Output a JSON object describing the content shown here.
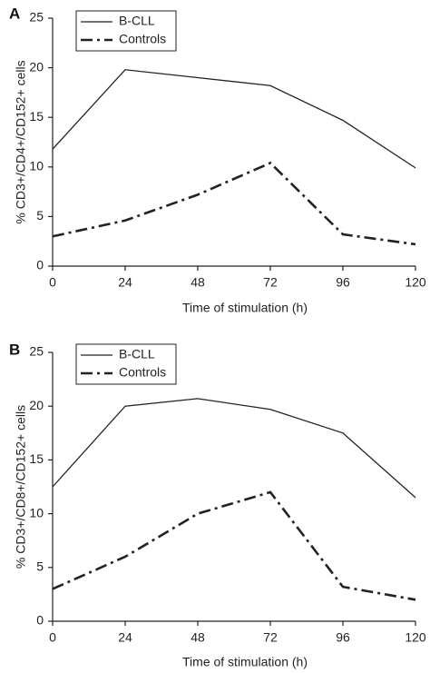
{
  "chart_data": [
    {
      "type": "line",
      "panel_label": "A",
      "xlabel": "Time of stimulation (h)",
      "ylabel": "% CD3+/CD4+/CD152+ cells",
      "x": [
        0,
        24,
        48,
        72,
        96,
        120
      ],
      "xlim": [
        0,
        120
      ],
      "ylim": [
        0,
        25
      ],
      "x_ticks": [
        0,
        24,
        48,
        72,
        96,
        120
      ],
      "y_ticks": [
        0,
        5,
        10,
        15,
        20,
        25
      ],
      "grid": false,
      "legend_position": "top-left",
      "series": [
        {
          "name": "B-CLL",
          "values": [
            11.8,
            19.8,
            19.0,
            18.2,
            14.7,
            9.9
          ],
          "color": "#222222",
          "style": "solid"
        },
        {
          "name": "Controls",
          "values": [
            3.0,
            4.6,
            7.2,
            10.4,
            3.2,
            2.2
          ],
          "color": "#222222",
          "style": "dash-dot"
        }
      ]
    },
    {
      "type": "line",
      "panel_label": "B",
      "xlabel": "Time of stimulation (h)",
      "ylabel": "% CD3+/CD8+/CD152+ cells",
      "x": [
        0,
        24,
        48,
        72,
        96,
        120
      ],
      "xlim": [
        0,
        120
      ],
      "ylim": [
        0,
        25
      ],
      "x_ticks": [
        0,
        24,
        48,
        72,
        96,
        120
      ],
      "y_ticks": [
        0,
        5,
        10,
        15,
        20,
        25
      ],
      "grid": false,
      "legend_position": "top-left",
      "series": [
        {
          "name": "B-CLL",
          "values": [
            12.5,
            20.0,
            20.7,
            19.7,
            17.5,
            11.5
          ],
          "color": "#222222",
          "style": "solid"
        },
        {
          "name": "Controls",
          "values": [
            3.0,
            6.0,
            10.0,
            12.0,
            3.2,
            2.0
          ],
          "color": "#222222",
          "style": "dash-dot"
        }
      ]
    }
  ]
}
